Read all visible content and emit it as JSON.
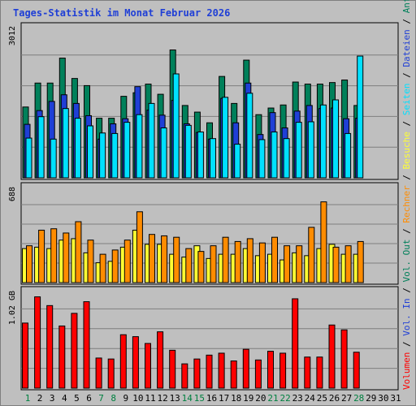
{
  "chart_data": [
    {
      "type": "bar",
      "title": "Tages-Statistik im Monat Februar 2026",
      "x": [
        "1",
        "2",
        "3",
        "4",
        "5",
        "6",
        "7",
        "8",
        "9",
        "10",
        "11",
        "12",
        "13",
        "14",
        "15",
        "16",
        "17",
        "18",
        "19",
        "20",
        "21",
        "22",
        "23",
        "24",
        "25",
        "26",
        "27",
        "28",
        "29",
        "30",
        "31"
      ],
      "weekend_days": [
        "1",
        "7",
        "8",
        "14",
        "15",
        "21",
        "22",
        "28"
      ],
      "ylim": [
        0,
        3012
      ],
      "y_max_label": "3012",
      "series": [
        {
          "name": "Anfragen",
          "color": "#00805a",
          "values": [
            1390,
            1860,
            1860,
            2350,
            1950,
            1810,
            1170,
            1170,
            1600,
            1670,
            1840,
            1640,
            2510,
            1420,
            1290,
            1080,
            1990,
            1460,
            2310,
            1240,
            1370,
            1430,
            1880,
            1840,
            1840,
            1870,
            1920,
            1420,
            0,
            0,
            0
          ]
        },
        {
          "name": "Dateien",
          "color": "#1f3fd6",
          "values": [
            1050,
            1320,
            1500,
            1630,
            1460,
            1220,
            760,
            1060,
            1160,
            1790,
            1330,
            1230,
            1520,
            1060,
            890,
            760,
            1560,
            1080,
            1860,
            850,
            1280,
            980,
            1310,
            1420,
            1360,
            1370,
            1160,
            1170,
            0,
            0,
            0
          ]
        },
        {
          "name": "Seiten",
          "color": "#00e0ff",
          "values": [
            780,
            1200,
            760,
            1360,
            1170,
            1020,
            880,
            870,
            1090,
            1240,
            1460,
            980,
            2040,
            1030,
            900,
            770,
            1580,
            660,
            1660,
            750,
            900,
            770,
            1090,
            1100,
            1430,
            1530,
            870,
            2390,
            0,
            0,
            0
          ]
        }
      ]
    },
    {
      "type": "bar",
      "ylim": [
        0,
        688
      ],
      "y_max_label": "688",
      "series": [
        {
          "name": "Besuche",
          "color": "#ffff33",
          "values": [
            240,
            250,
            240,
            300,
            310,
            210,
            140,
            150,
            250,
            370,
            270,
            270,
            200,
            180,
            260,
            170,
            200,
            200,
            240,
            190,
            200,
            160,
            210,
            190,
            240,
            270,
            200,
            200,
            0,
            0,
            0
          ]
        },
        {
          "name": "Rechner",
          "color": "#ff8c00",
          "values": [
            260,
            370,
            380,
            350,
            430,
            300,
            200,
            230,
            300,
            500,
            340,
            330,
            320,
            240,
            220,
            260,
            320,
            290,
            310,
            280,
            320,
            260,
            260,
            390,
            570,
            250,
            260,
            290,
            0,
            0,
            0
          ]
        }
      ]
    },
    {
      "type": "bar",
      "ylim": [
        0,
        1.02
      ],
      "y_max_label": "1.02 GB",
      "series": [
        {
          "name": "Volumen",
          "color": "#ff0000",
          "values": [
            0.67,
            0.94,
            0.85,
            0.64,
            0.77,
            0.89,
            0.31,
            0.3,
            0.55,
            0.53,
            0.46,
            0.58,
            0.39,
            0.25,
            0.3,
            0.34,
            0.36,
            0.28,
            0.4,
            0.29,
            0.38,
            0.36,
            0.92,
            0.32,
            0.32,
            0.65,
            0.6,
            0.37,
            0,
            0,
            0
          ]
        }
      ]
    }
  ],
  "legend_right": [
    {
      "label": "Anfragen",
      "color": "#00805a"
    },
    {
      "label": "Dateien",
      "color": "#1f3fd6"
    },
    {
      "label": "Seiten",
      "color": "#00e0ff"
    },
    {
      "label": "Besuche",
      "color": "#ffff33"
    },
    {
      "label": "Rechner",
      "color": "#ff8c00"
    },
    {
      "label": "Vol. Out",
      "color": "#00805a"
    },
    {
      "label": "Vol. In",
      "color": "#1f3fd6"
    },
    {
      "label": "Volumen",
      "color": "#ff0000"
    }
  ],
  "legend_separator": " / ",
  "colors": {
    "weekday_label": "#000000",
    "weekend_label": "#008040",
    "frame_bg": "#bfbfbf",
    "grid": "#7f7f7f"
  }
}
